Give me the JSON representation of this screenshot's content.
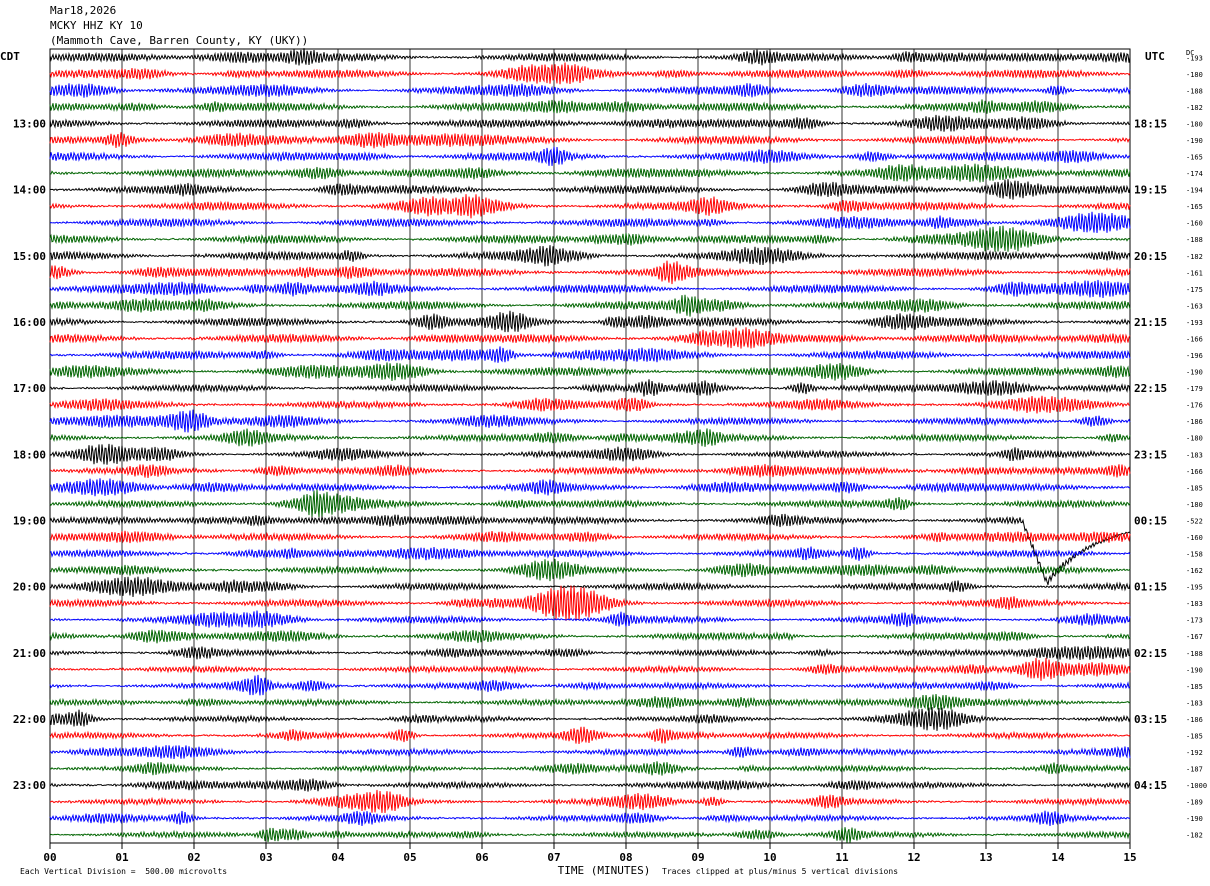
{
  "header": {
    "date": "Mar18,2026",
    "station": "MCKY HHZ KY 10",
    "location": "(Mammoth Cave, Barren County, KY (UKY))"
  },
  "chart_data": {
    "type": "line",
    "title": "MCKY HHZ KY 10",
    "left_axis_label": "CDT",
    "right_axis_label": "UTC",
    "dc_label": "DC",
    "xlabel": "TIME (MINUTES)",
    "x_ticks": [
      "00",
      "01",
      "02",
      "03",
      "04",
      "05",
      "06",
      "07",
      "08",
      "09",
      "10",
      "11",
      "12",
      "13",
      "14",
      "15"
    ],
    "xlim": [
      0,
      15
    ],
    "left_hour_labels": [
      "13:00",
      "14:00",
      "15:00",
      "16:00",
      "17:00",
      "18:00",
      "19:00",
      "20:00",
      "21:00",
      "22:00",
      "23:00"
    ],
    "right_hour_labels": [
      "18:15",
      "19:15",
      "20:15",
      "21:15",
      "22:15",
      "23:15",
      "00:15",
      "01:15",
      "02:15",
      "03:15",
      "04:15"
    ],
    "trace_colors": [
      "#000000",
      "#ff0000",
      "#0000ff",
      "#006400"
    ],
    "trace_count": 48,
    "dc_offsets": [
      "-193",
      "-180",
      "-188",
      "-182",
      "-180",
      "-190",
      "-165",
      "-174",
      "-194",
      "-165",
      "-160",
      "-188",
      "-182",
      "-161",
      "-175",
      "-163",
      "-193",
      "-166",
      "-196",
      "-190",
      "-179",
      "-176",
      "-186",
      "-180",
      "-183",
      "-166",
      "-185",
      "-180",
      "-522",
      "-160",
      "-158",
      "-162",
      "-195",
      "-183",
      "-173",
      "-167",
      "-188",
      "-190",
      "-185",
      "-183",
      "-186",
      "-185",
      "-192",
      "-187",
      "-1000",
      "-189",
      "-190",
      "-182"
    ],
    "event": {
      "trace_index": 28,
      "start_minute": 13.5,
      "description": "large offset"
    },
    "footer_left": "Each Vertical Division =  500.00 microvolts",
    "footer_right": "Traces clipped at plus/minus 5 vertical divisions"
  }
}
